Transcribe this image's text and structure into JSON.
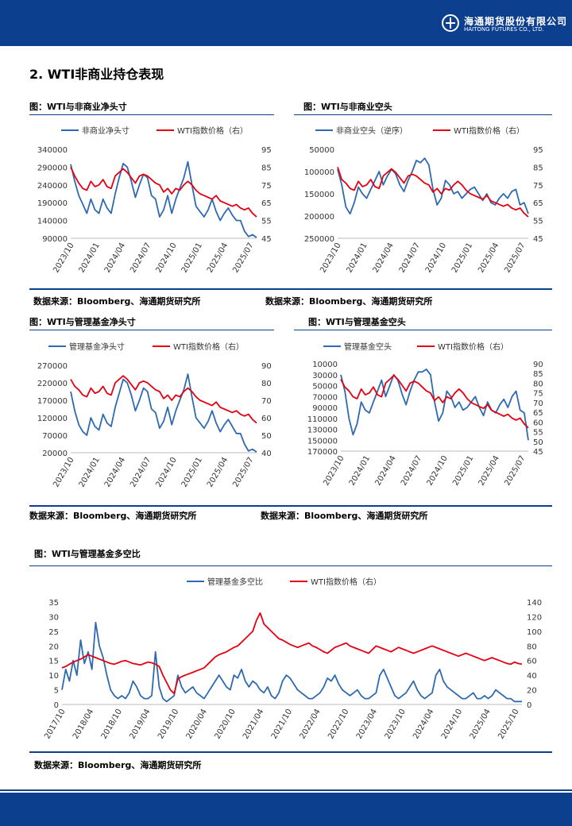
{
  "header": {
    "company_cn": "海通期货股份有限公司",
    "company_en": "HAITONG FUTURES CO., LTD.",
    "logo_icon": "haitong-logo-icon",
    "brand_color": "#0d3f8f"
  },
  "section": {
    "title": "2. WTI非商业持仓表现"
  },
  "source_text": "数据来源：Bloomberg、海通期货研究所",
  "colors": {
    "blue": "#2e6ab0",
    "red": "#e60012"
  },
  "chart_data": [
    {
      "id": "c1",
      "type": "line",
      "title": "图：WTI与非商业净头寸",
      "series": [
        {
          "name": "非商业净头寸",
          "axis": "left",
          "color": "#2e6ab0",
          "values": [
            298000,
            250000,
            210000,
            185000,
            160000,
            200000,
            170000,
            160000,
            200000,
            175000,
            160000,
            215000,
            260000,
            300000,
            290000,
            250000,
            205000,
            240000,
            270000,
            260000,
            210000,
            200000,
            150000,
            170000,
            210000,
            160000,
            200000,
            230000,
            260000,
            305000,
            240000,
            180000,
            165000,
            150000,
            170000,
            200000,
            165000,
            140000,
            160000,
            175000,
            155000,
            140000,
            140000,
            110000,
            95000,
            100000,
            92000
          ]
        },
        {
          "name": "WTI指数价格（右）",
          "axis": "right",
          "color": "#e60012",
          "values": [
            85,
            80,
            76,
            73,
            72,
            77,
            74,
            75,
            78,
            74,
            73,
            80,
            82,
            84,
            82,
            79,
            76,
            80,
            81,
            80,
            78,
            76,
            75,
            71,
            73,
            70,
            73,
            72,
            75,
            77,
            75,
            72,
            70,
            69,
            68,
            67,
            69,
            66,
            65,
            64,
            63,
            64,
            62,
            61,
            62,
            59,
            57
          ]
        }
      ],
      "x_labels": [
        "2023/10",
        "2024/01",
        "2024/04",
        "2024/07",
        "2024/10",
        "2025/01",
        "2025/04",
        "2025/07"
      ],
      "ylim_left": [
        90000,
        340000
      ],
      "y_ticks_left": [
        "340000",
        "290000",
        "240000",
        "190000",
        "140000",
        "90000"
      ],
      "ylim_right": [
        45,
        95
      ],
      "y_ticks_right": [
        "95",
        "85",
        "75",
        "65",
        "55",
        "45"
      ],
      "legend": "top"
    },
    {
      "id": "c2",
      "type": "line",
      "title": "图：WTI与非商业空头",
      "series": [
        {
          "name": "非商业空头（逆序）",
          "axis": "left",
          "color": "#2e6ab0",
          "inverted": true,
          "values": [
            95000,
            130000,
            180000,
            195000,
            170000,
            135000,
            150000,
            160000,
            140000,
            120000,
            100000,
            130000,
            110000,
            95000,
            105000,
            130000,
            145000,
            120000,
            100000,
            75000,
            80000,
            70000,
            85000,
            140000,
            175000,
            160000,
            120000,
            130000,
            150000,
            145000,
            160000,
            150000,
            140000,
            135000,
            150000,
            165000,
            150000,
            170000,
            175000,
            160000,
            150000,
            160000,
            145000,
            140000,
            175000,
            170000,
            195000
          ]
        },
        {
          "name": "WTI指数价格（右）",
          "axis": "right",
          "color": "#e60012",
          "values": [
            85,
            78,
            76,
            73,
            72,
            77,
            74,
            75,
            78,
            74,
            73,
            80,
            82,
            84,
            82,
            79,
            76,
            80,
            81,
            80,
            78,
            76,
            75,
            71,
            73,
            70,
            73,
            72,
            75,
            77,
            75,
            72,
            70,
            69,
            68,
            67,
            69,
            66,
            65,
            64,
            63,
            64,
            62,
            61,
            62,
            59,
            57
          ]
        }
      ],
      "x_labels": [
        "2023/10",
        "2024/01",
        "2024/04",
        "2024/07",
        "2024/10",
        "2025/01",
        "2025/04",
        "2025/07"
      ],
      "ylim_left": [
        50000,
        250000
      ],
      "y_ticks_left": [
        "50000",
        "100000",
        "150000",
        "200000",
        "250000"
      ],
      "ylim_right": [
        45,
        95
      ],
      "y_ticks_right": [
        "95",
        "85",
        "75",
        "65",
        "55",
        "45"
      ],
      "legend": "top"
    },
    {
      "id": "c3",
      "type": "line",
      "title": "图：WTI与管理基金净头寸",
      "series": [
        {
          "name": "管理基金净头寸",
          "axis": "left",
          "color": "#2e6ab0",
          "values": [
            195000,
            140000,
            100000,
            80000,
            70000,
            120000,
            95000,
            85000,
            130000,
            105000,
            95000,
            150000,
            190000,
            230000,
            220000,
            185000,
            140000,
            170000,
            205000,
            195000,
            145000,
            135000,
            90000,
            110000,
            150000,
            100000,
            140000,
            170000,
            200000,
            245000,
            180000,
            120000,
            105000,
            90000,
            110000,
            140000,
            105000,
            80000,
            100000,
            115000,
            95000,
            75000,
            75000,
            45000,
            25000,
            30000,
            22000
          ]
        },
        {
          "name": "WTI指数价格（右）",
          "axis": "right",
          "color": "#e60012",
          "values": [
            82,
            78,
            76,
            73,
            72,
            77,
            74,
            75,
            78,
            74,
            73,
            80,
            82,
            84,
            82,
            79,
            76,
            80,
            81,
            80,
            78,
            76,
            75,
            71,
            73,
            70,
            73,
            72,
            75,
            77,
            75,
            72,
            70,
            69,
            68,
            67,
            69,
            66,
            65,
            64,
            63,
            64,
            62,
            61,
            62,
            59,
            57
          ]
        }
      ],
      "x_labels": [
        "2023/10",
        "2024/01",
        "2024/04",
        "2024/07",
        "2024/10",
        "2025/01",
        "2025/04",
        "2025/07"
      ],
      "ylim_left": [
        20000,
        270000
      ],
      "y_ticks_left": [
        "270000",
        "220000",
        "170000",
        "120000",
        "70000",
        "20000"
      ],
      "ylim_right": [
        40,
        90
      ],
      "y_ticks_right": [
        "90",
        "80",
        "70",
        "60",
        "50",
        "40"
      ],
      "legend": "top"
    },
    {
      "id": "c4",
      "type": "line",
      "title": "图：WTI与管理基金空头",
      "series": [
        {
          "name": "管理基金空头",
          "axis": "left",
          "color": "#2e6ab0",
          "inverted": true,
          "values": [
            30000,
            60000,
            110000,
            140000,
            120000,
            80000,
            95000,
            100000,
            80000,
            60000,
            40000,
            70000,
            50000,
            30000,
            40000,
            65000,
            85000,
            60000,
            40000,
            25000,
            25000,
            20000,
            30000,
            80000,
            115000,
            100000,
            60000,
            70000,
            90000,
            80000,
            95000,
            90000,
            80000,
            70000,
            90000,
            105000,
            80000,
            95000,
            100000,
            85000,
            75000,
            90000,
            70000,
            60000,
            95000,
            100000,
            150000
          ]
        },
        {
          "name": "WTI指数价格（右）",
          "axis": "right",
          "color": "#e60012",
          "values": [
            82,
            78,
            76,
            73,
            72,
            77,
            74,
            75,
            78,
            74,
            73,
            80,
            82,
            84,
            82,
            79,
            76,
            80,
            81,
            80,
            78,
            76,
            75,
            71,
            73,
            70,
            73,
            72,
            75,
            77,
            75,
            72,
            70,
            69,
            68,
            67,
            69,
            66,
            65,
            64,
            63,
            64,
            62,
            61,
            62,
            59,
            57
          ]
        }
      ],
      "x_labels": [
        "2023/10",
        "2024/01",
        "2024/04",
        "2024/07",
        "2024/10",
        "2025/01",
        "2025/04",
        "2025/07"
      ],
      "ylim_left": [
        10000,
        170000
      ],
      "y_ticks_left": [
        "10000",
        "30000",
        "50000",
        "70000",
        "90000",
        "110000",
        "130000",
        "150000",
        "170000"
      ],
      "ylim_right": [
        45,
        90
      ],
      "y_ticks_right": [
        "90",
        "85",
        "80",
        "75",
        "70",
        "65",
        "60",
        "55",
        "50",
        "45"
      ],
      "legend": "top"
    },
    {
      "id": "c5",
      "type": "line",
      "title": "图：WTI与管理基金多空比",
      "series": [
        {
          "name": "管理基金多空比",
          "axis": "left",
          "color": "#2e6ab0",
          "values": [
            5,
            12,
            8,
            15,
            10,
            22,
            14,
            18,
            12,
            28,
            20,
            16,
            10,
            5,
            3,
            2,
            3,
            2,
            4,
            8,
            6,
            3,
            2,
            2,
            3,
            18,
            6,
            2,
            1,
            2,
            3,
            10,
            6,
            4,
            5,
            6,
            4,
            3,
            2,
            4,
            6,
            8,
            10,
            8,
            6,
            5,
            10,
            9,
            12,
            8,
            6,
            8,
            7,
            5,
            4,
            6,
            3,
            2,
            4,
            8,
            10,
            9,
            7,
            5,
            4,
            3,
            2,
            2,
            3,
            4,
            6,
            9,
            8,
            10,
            7,
            5,
            4,
            3,
            4,
            5,
            3,
            2,
            2,
            3,
            4,
            10,
            12,
            9,
            6,
            3,
            2,
            3,
            4,
            6,
            8,
            5,
            3,
            2,
            3,
            4,
            10,
            12,
            8,
            6,
            5,
            4,
            3,
            2,
            2,
            3,
            4,
            2,
            2,
            3,
            2,
            3,
            5,
            4,
            3,
            2,
            2,
            1,
            1,
            1
          ]
        },
        {
          "name": "WTI指数价格（右）",
          "axis": "right",
          "color": "#e60012",
          "values": [
            50,
            52,
            55,
            58,
            60,
            62,
            65,
            68,
            66,
            64,
            62,
            60,
            58,
            56,
            55,
            57,
            59,
            60,
            58,
            56,
            55,
            54,
            56,
            58,
            57,
            55,
            52,
            40,
            30,
            20,
            15,
            35,
            38,
            40,
            42,
            44,
            46,
            48,
            50,
            55,
            60,
            65,
            68,
            70,
            72,
            75,
            78,
            80,
            85,
            90,
            95,
            100,
            115,
            125,
            110,
            105,
            100,
            95,
            90,
            88,
            85,
            82,
            80,
            78,
            80,
            82,
            84,
            80,
            78,
            75,
            72,
            70,
            74,
            78,
            80,
            82,
            84,
            80,
            78,
            76,
            74,
            72,
            70,
            75,
            80,
            78,
            76,
            74,
            72,
            75,
            78,
            76,
            74,
            72,
            70,
            72,
            74,
            76,
            78,
            80,
            78,
            76,
            74,
            72,
            70,
            68,
            66,
            68,
            70,
            68,
            66,
            64,
            62,
            60,
            62,
            64,
            62,
            60,
            58,
            56,
            55,
            58,
            56,
            55
          ]
        }
      ],
      "x_labels": [
        "2017/10",
        "2018/04",
        "2018/10",
        "2019/04",
        "2019/10",
        "2020/04",
        "2020/10",
        "2021/04",
        "2021/10",
        "2022/04",
        "2022/10",
        "2023/04",
        "2023/10",
        "2024/04",
        "2024/10",
        "2025/04",
        "2025/10"
      ],
      "ylim_left": [
        0,
        35
      ],
      "y_ticks_left": [
        "35",
        "30",
        "25",
        "20",
        "15",
        "10",
        "5",
        "0"
      ],
      "ylim_right": [
        0,
        140
      ],
      "y_ticks_right": [
        "140",
        "120",
        "100",
        "80",
        "60",
        "40",
        "20",
        "0"
      ],
      "legend": "top"
    }
  ]
}
